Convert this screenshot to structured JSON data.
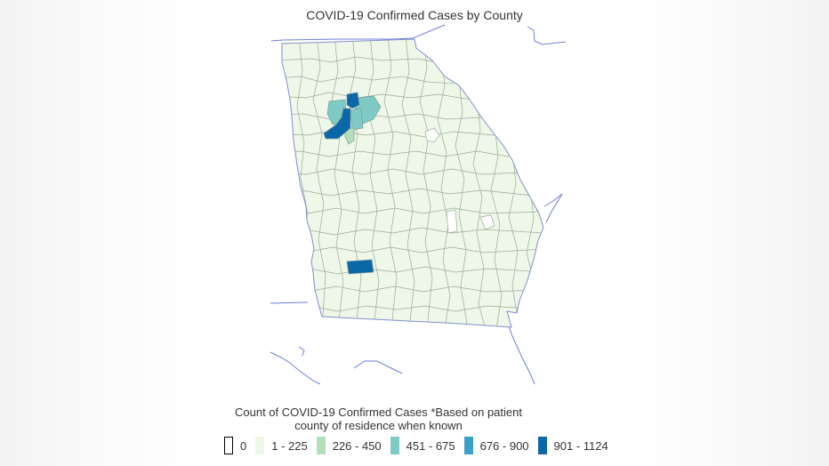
{
  "map": {
    "title": "COVID-19 Confirmed Cases by County",
    "region": "Georgia",
    "colors": {
      "base": "#eef7e8",
      "border": "#9aaa98",
      "state_border": "#6f7fd6",
      "c1": "#b3e0b8",
      "c2": "#7fcac4",
      "c3": "#3aa0c6",
      "c4": "#0a67a8"
    }
  },
  "legend": {
    "title_line1": "Count of COVID-19 Confirmed Cases *Based on patient",
    "title_line2": "county of residence when known",
    "items": [
      {
        "label": "0",
        "color": "#ffffff",
        "outline": "#000000"
      },
      {
        "label": "1 - 225",
        "color": "#eef7e8"
      },
      {
        "label": "226 - 450",
        "color": "#b3e0b8"
      },
      {
        "label": "451 - 675",
        "color": "#7fcac4"
      },
      {
        "label": "676 - 900",
        "color": "#3aa0c6"
      },
      {
        "label": "901 - 1124",
        "color": "#0a67a8"
      }
    ]
  }
}
